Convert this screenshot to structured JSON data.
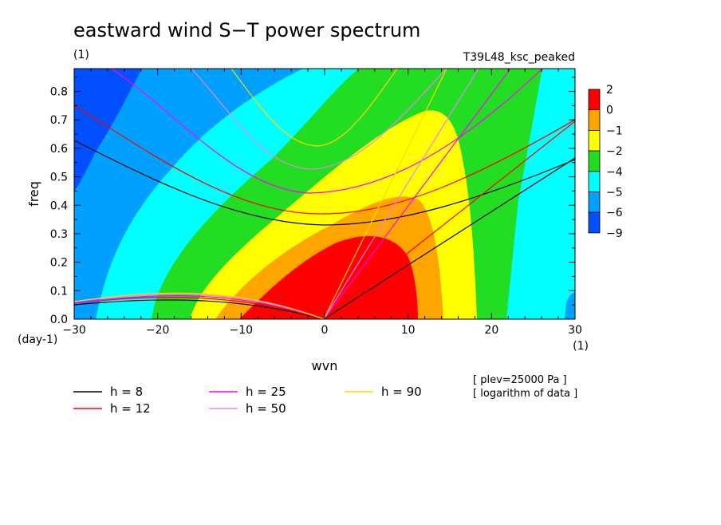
{
  "chart_data": {
    "type": "heatmap",
    "title": "eastward wind S−T power spectrum",
    "subtitle_left": "(1)",
    "subtitle_right": "T39L48_ksc_peaked",
    "xlabel": "wvn",
    "ylabel": "freq",
    "x_unit_label": "(1)",
    "y_unit_label": "(day-1)",
    "xlim": [
      -30,
      30
    ],
    "ylim": [
      0,
      0.88
    ],
    "x_ticks": [
      "−30",
      "−20",
      "−10",
      "0",
      "10",
      "20",
      "30"
    ],
    "y_ticks": [
      "0.0",
      "0.1",
      "0.2",
      "0.3",
      "0.4",
      "0.5",
      "0.6",
      "0.7",
      "0.8"
    ],
    "colorbar": {
      "labels": [
        "2",
        "0",
        "−1",
        "−2",
        "−4",
        "−5",
        "−6",
        "−9"
      ],
      "colors": [
        "#ff0000",
        "#ffa500",
        "#ffff00",
        "#22dd22",
        "#00ffff",
        "#00a0ff",
        "#0050ff"
      ]
    },
    "dispersion_curves": [
      {
        "label": "h =  8",
        "color": "#000000"
      },
      {
        "label": "h = 12",
        "color": "#ff0000"
      },
      {
        "label": "h = 25",
        "color": "#ff00ff"
      },
      {
        "label": "h = 50",
        "color": "#ee82ee"
      },
      {
        "label": "h = 90",
        "color": "#ffd700"
      }
    ],
    "notes": [
      "[ plev=25000 Pa ]",
      "[ logarithm of data ]"
    ]
  }
}
